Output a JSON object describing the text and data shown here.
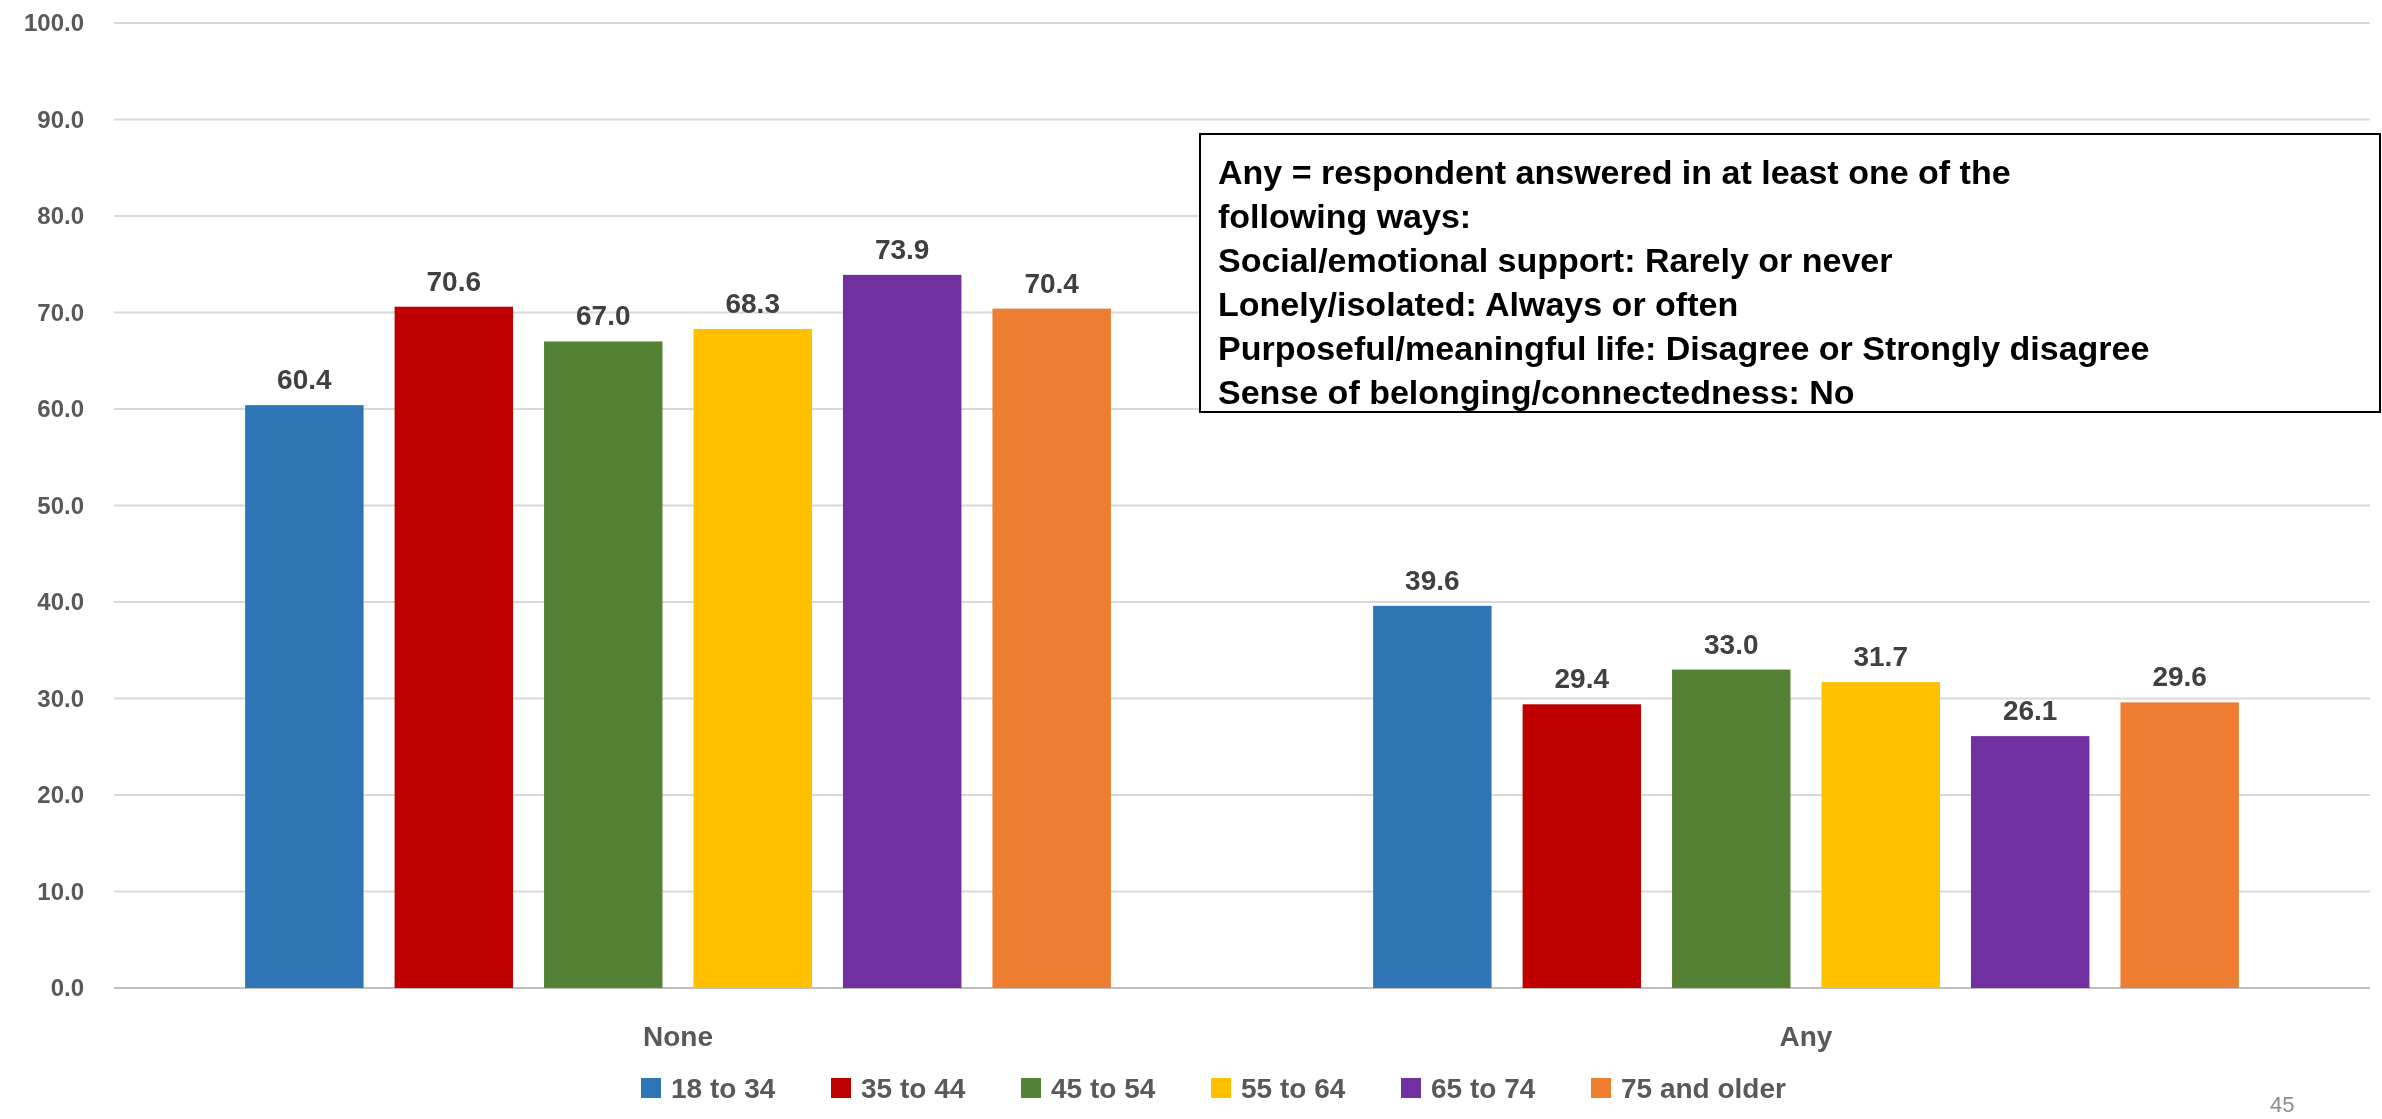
{
  "chart_data": {
    "type": "bar",
    "categories": [
      "None",
      "Any"
    ],
    "series": [
      {
        "name": "18 to 34",
        "color": "#2e75b6",
        "values": [
          60.4,
          39.6
        ],
        "value_labels": [
          "60.4",
          "39.6"
        ]
      },
      {
        "name": "35 to 44",
        "color": "#c00000",
        "values": [
          70.6,
          29.4
        ],
        "value_labels": [
          "70.6",
          "29.4"
        ]
      },
      {
        "name": "45 to 54",
        "color": "#548235",
        "values": [
          67.0,
          33.0
        ],
        "value_labels": [
          "67.0",
          "33.0"
        ]
      },
      {
        "name": "55 to 64",
        "color": "#ffc000",
        "values": [
          68.3,
          31.7
        ],
        "value_labels": [
          "68.3",
          "31.7"
        ]
      },
      {
        "name": "65 to 74",
        "color": "#7030a0",
        "values": [
          73.9,
          26.1
        ],
        "value_labels": [
          "73.9",
          "26.1"
        ]
      },
      {
        "name": "75 and older",
        "color": "#ed7d31",
        "values": [
          70.4,
          29.6
        ],
        "value_labels": [
          "70.4",
          "29.6"
        ]
      }
    ],
    "ylim": [
      0,
      100
    ],
    "yticks": [
      {
        "value": 0,
        "label": "0.0"
      },
      {
        "value": 10,
        "label": "10.0"
      },
      {
        "value": 20,
        "label": "20.0"
      },
      {
        "value": 30,
        "label": "30.0"
      },
      {
        "value": 40,
        "label": "40.0"
      },
      {
        "value": 50,
        "label": "50.0"
      },
      {
        "value": 60,
        "label": "60.0"
      },
      {
        "value": 70,
        "label": "70.0"
      },
      {
        "value": 80,
        "label": "80.0"
      },
      {
        "value": 90,
        "label": "90.0"
      },
      {
        "value": 100,
        "label": "100.0"
      }
    ],
    "grid": "y",
    "legend": "bottom",
    "annotations": [
      "Any = respondent answered in at least one of the\nfollowing ways:\nSocial/emotional support: Rarely or never\nLonely/isolated: Always or often\nPurposeful/meaningful life: Disagree or Strongly disagree\nSense of belonging/connectedness: No",
      "45"
    ]
  }
}
